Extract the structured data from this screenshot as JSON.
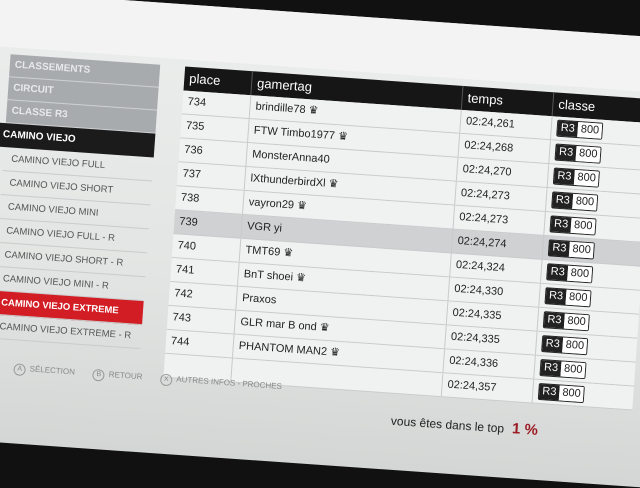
{
  "nav": {
    "crumbs": [
      "CLASSEMENTS",
      "CIRCUIT",
      "CLASSE R3"
    ],
    "active": "CAMINO VIEJO",
    "items": [
      "CAMINO VIEJO FULL",
      "CAMINO VIEJO SHORT",
      "CAMINO VIEJO MINI",
      "CAMINO VIEJO FULL - R",
      "CAMINO VIEJO SHORT - R",
      "CAMINO VIEJO MINI - R",
      "CAMINO VIEJO EXTREME",
      "CAMINO VIEJO EXTREME - R"
    ],
    "selected_index": 6
  },
  "table": {
    "headers": [
      "place",
      "gamertag",
      "temps",
      "classe"
    ],
    "rows": [
      {
        "place": "734",
        "gamertag": "brindille78",
        "crown": true,
        "time": "02:24,261",
        "class": "R3",
        "pi": "800"
      },
      {
        "place": "735",
        "gamertag": "FTW Timbo1977",
        "crown": true,
        "time": "02:24,268",
        "class": "R3",
        "pi": "800"
      },
      {
        "place": "736",
        "gamertag": "MonsterAnna40",
        "crown": false,
        "time": "02:24,270",
        "class": "R3",
        "pi": "800"
      },
      {
        "place": "737",
        "gamertag": "lXthunderbirdXl",
        "crown": true,
        "time": "02:24,273",
        "class": "R3",
        "pi": "800"
      },
      {
        "place": "738",
        "gamertag": "vayron29",
        "crown": true,
        "time": "02:24,273",
        "class": "R3",
        "pi": "800"
      },
      {
        "place": "739",
        "gamertag": "VGR yi",
        "crown": false,
        "time": "02:24,274",
        "class": "R3",
        "pi": "800",
        "highlight": true
      },
      {
        "place": "740",
        "gamertag": "TMT69",
        "crown": true,
        "time": "02:24,324",
        "class": "R3",
        "pi": "800"
      },
      {
        "place": "741",
        "gamertag": "BnT shoei",
        "crown": true,
        "time": "02:24,330",
        "class": "R3",
        "pi": "800"
      },
      {
        "place": "742",
        "gamertag": "Praxos",
        "crown": false,
        "time": "02:24,335",
        "class": "R3",
        "pi": "800"
      },
      {
        "place": "743",
        "gamertag": "GLR mar B ond",
        "crown": true,
        "time": "02:24,335",
        "class": "R3",
        "pi": "800"
      },
      {
        "place": "744",
        "gamertag": "PHANTOM MAN2",
        "crown": true,
        "time": "02:24,336",
        "class": "R3",
        "pi": "800"
      },
      {
        "place": "",
        "gamertag": "",
        "crown": false,
        "time": "02:24,357",
        "class": "R3",
        "pi": "800"
      }
    ]
  },
  "footer": [
    {
      "key": "A",
      "label": "SÉLECTION"
    },
    {
      "key": "B",
      "label": "RETOUR"
    },
    {
      "key": "X",
      "label": "AUTRES INFOS - PROCHES"
    }
  ],
  "top": {
    "label": "vous êtes dans le top",
    "value": "1 %"
  },
  "colors": {
    "selected": "#d21d24",
    "header": "#161616",
    "percent": "#9b1b22"
  }
}
